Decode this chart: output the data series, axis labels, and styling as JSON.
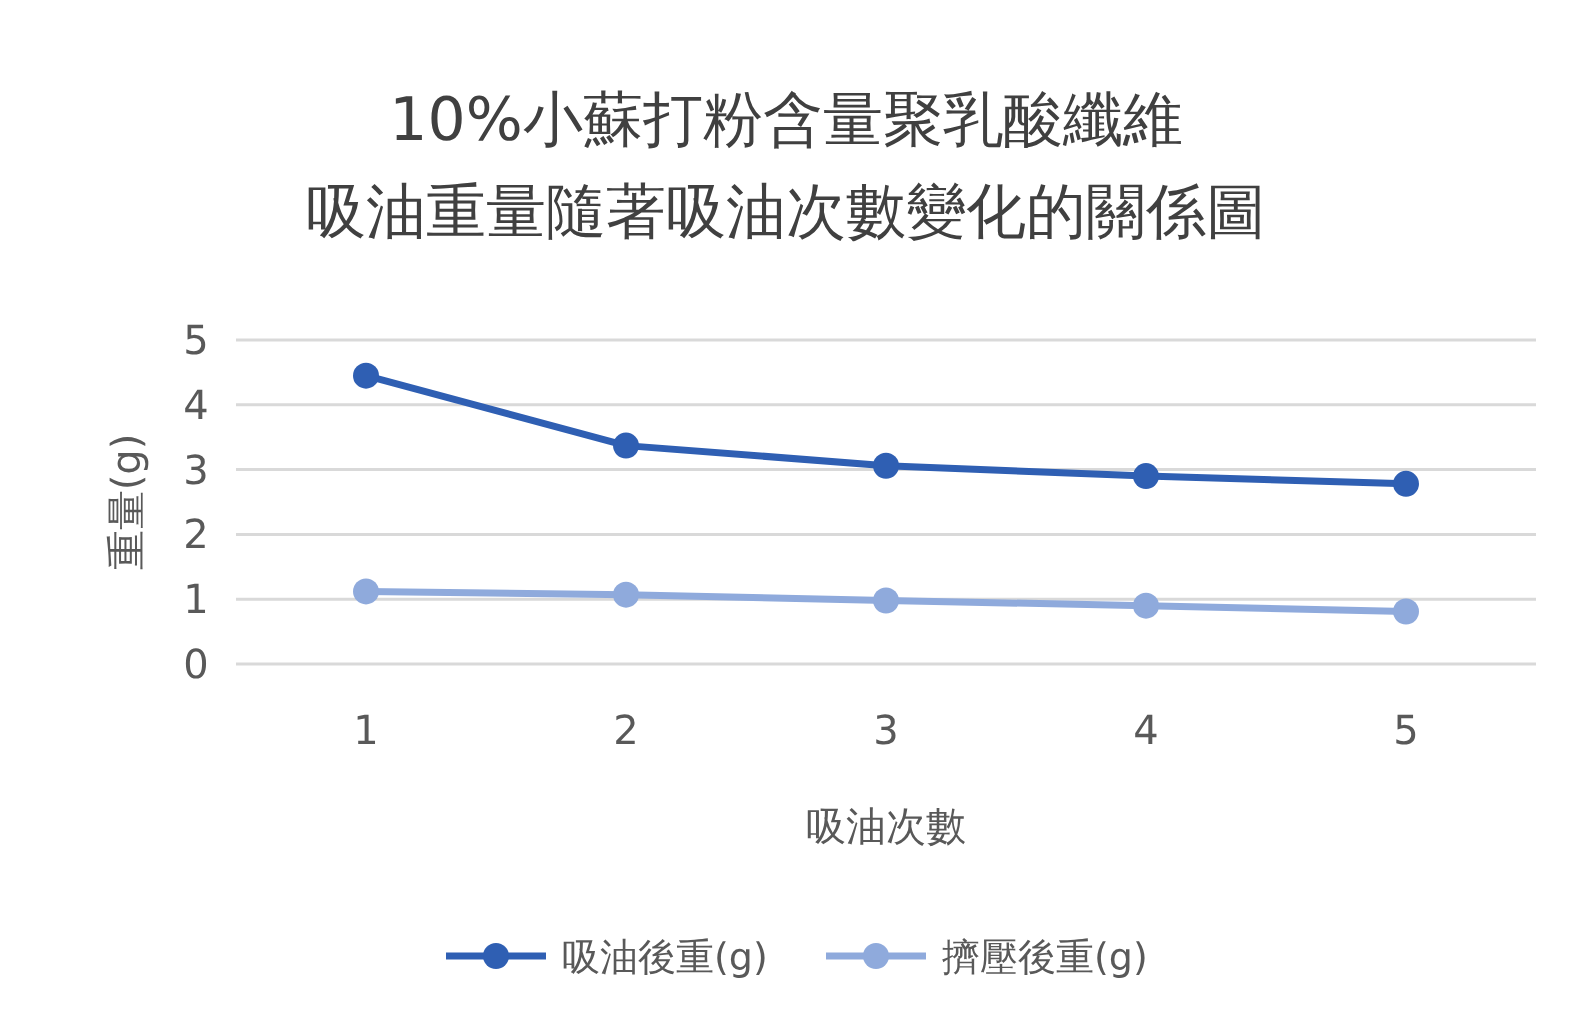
{
  "chart_data": {
    "type": "line",
    "title": "10%小蘇打粉含量聚乳酸纖維",
    "subtitle": "吸油重量隨著吸油次數變化的關係圖",
    "xlabel": "吸油次數",
    "ylabel": "重量(g)",
    "categories": [
      "1",
      "2",
      "3",
      "4",
      "5"
    ],
    "series": [
      {
        "name": "吸油後重(g)",
        "color": "#2f5fb3",
        "values": [
          4.45,
          3.37,
          3.06,
          2.9,
          2.78
        ]
      },
      {
        "name": "擠壓後重(g)",
        "color": "#8faadc",
        "values": [
          1.12,
          1.07,
          0.98,
          0.9,
          0.81
        ]
      }
    ],
    "ylim": [
      0,
      5
    ],
    "yticks": [
      0,
      1,
      2,
      3,
      4,
      5
    ],
    "grid": "y",
    "legend": "bottom",
    "marker": "circle",
    "line_style": "solid"
  }
}
